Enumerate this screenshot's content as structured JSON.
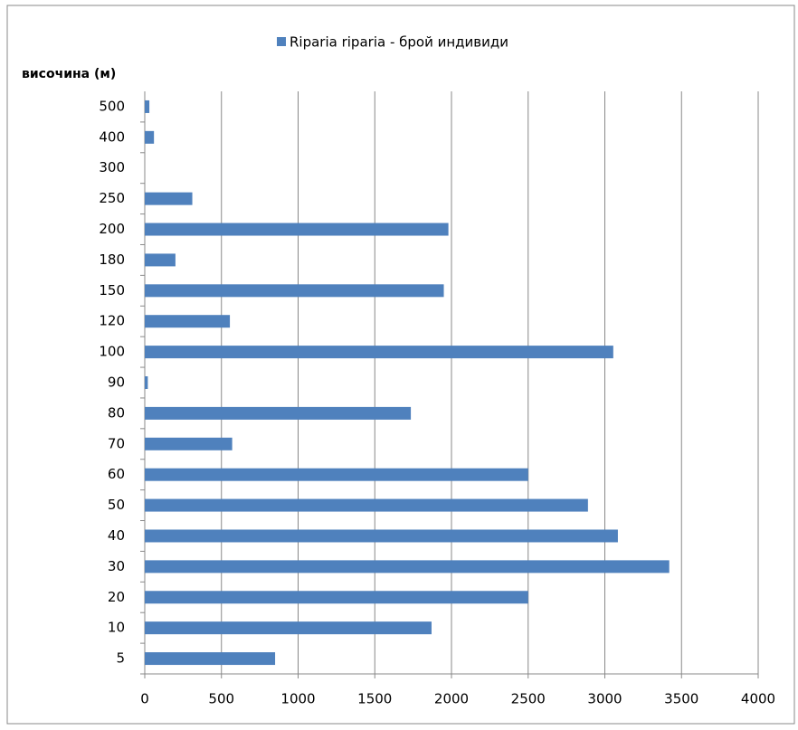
{
  "chart_data": {
    "type": "bar",
    "orientation": "horizontal",
    "legend": "top",
    "y_label": "височина (м)",
    "categories": [
      "5",
      "10",
      "20",
      "30",
      "40",
      "50",
      "60",
      "70",
      "80",
      "90",
      "100",
      "120",
      "150",
      "180",
      "200",
      "250",
      "300",
      "400",
      "500"
    ],
    "series": [
      {
        "name": "Riparia riparia - брой индивиди",
        "color": "#4f81bd",
        "values": [
          850,
          1870,
          2500,
          3420,
          3085,
          2890,
          2500,
          570,
          1735,
          20,
          3055,
          555,
          1950,
          200,
          1980,
          310,
          0,
          60,
          30
        ]
      }
    ],
    "xlim": [
      0,
      4000
    ],
    "xticks": [
      0,
      500,
      1000,
      1500,
      2000,
      2500,
      3000,
      3500,
      4000
    ],
    "grid": true
  }
}
